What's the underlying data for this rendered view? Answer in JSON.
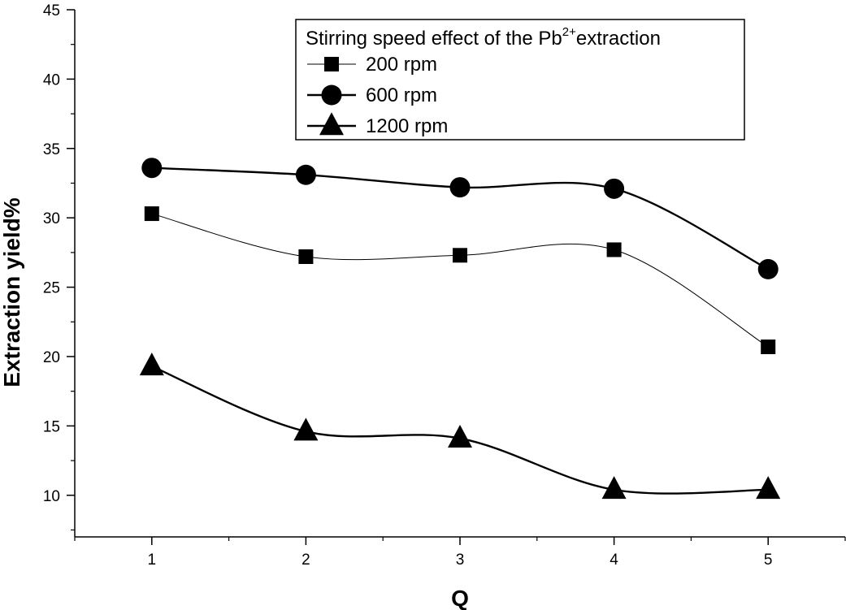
{
  "chart_data": {
    "type": "line",
    "x": [
      1,
      2,
      3,
      4,
      5
    ],
    "xlabel": "Q",
    "ylabel": "Extraction yield%",
    "xlim": [
      0.5,
      5.5
    ],
    "ylim": [
      7,
      45
    ],
    "xticks": [
      1,
      2,
      3,
      4,
      5
    ],
    "yticks": [
      10,
      15,
      20,
      25,
      30,
      35,
      40,
      45
    ],
    "grid": false,
    "legend": {
      "title_prefix": "Stirring speed effect of the Pb",
      "title_superscript": "2+",
      "title_suffix": "extraction",
      "placement": "top-right"
    },
    "series": [
      {
        "name": "200 rpm",
        "marker": "square",
        "line_weight": "thin",
        "values": [
          30.3,
          27.2,
          27.3,
          27.7,
          20.7
        ]
      },
      {
        "name": "600 rpm",
        "marker": "circle",
        "line_weight": "thick",
        "values": [
          33.6,
          33.1,
          32.2,
          32.1,
          26.3
        ]
      },
      {
        "name": "1200 rpm",
        "marker": "triangle",
        "line_weight": "thick",
        "values": [
          19.3,
          14.6,
          14.1,
          10.4,
          10.4
        ]
      }
    ],
    "color": "#000000"
  }
}
